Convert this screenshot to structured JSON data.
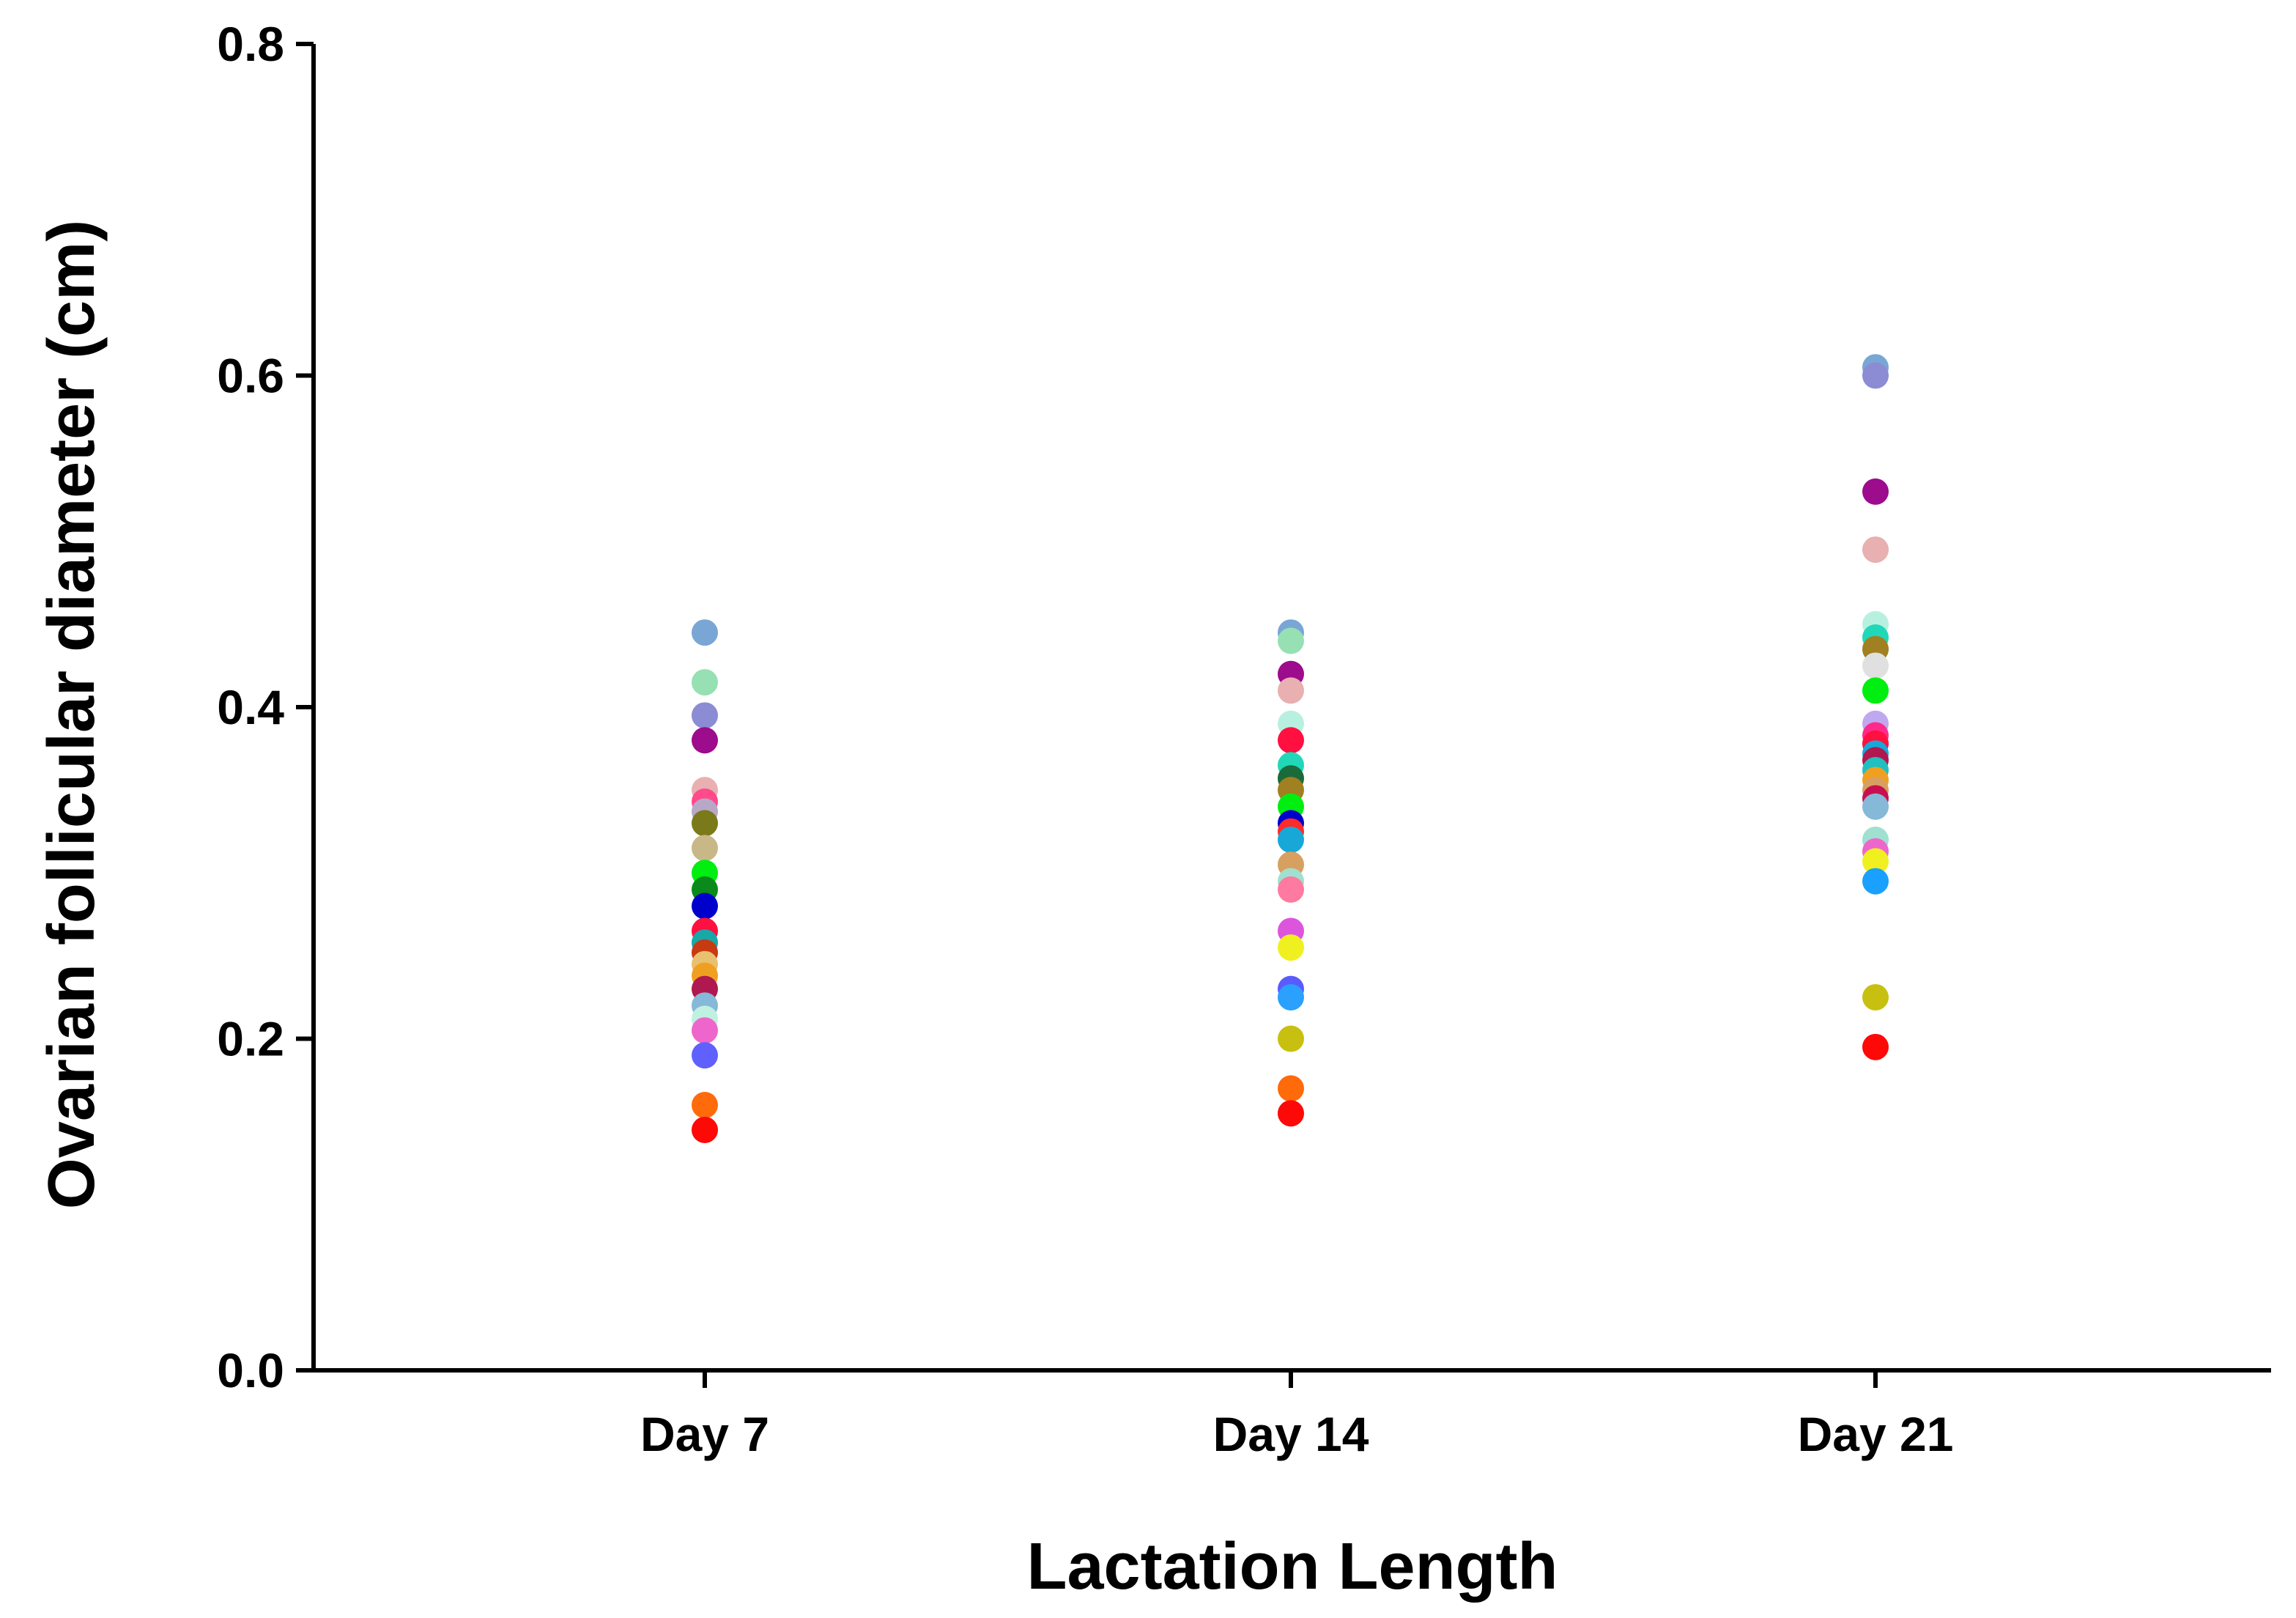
{
  "chart_data": {
    "type": "scatter",
    "title": "",
    "xlabel": "Lactation Length",
    "ylabel": "Ovarian follicular diameter (cm)",
    "categories": [
      "Day 7",
      "Day 14",
      "Day 21"
    ],
    "ylim": [
      0.0,
      0.8
    ],
    "yticks": [
      0.0,
      0.2,
      0.4,
      0.6,
      0.8
    ],
    "ytick_labels": [
      "0.0",
      "0.2",
      "0.4",
      "0.6",
      "0.8"
    ],
    "grid": false,
    "legend": "none",
    "groups": [
      {
        "category": "Day 7",
        "points": [
          {
            "y": 0.445,
            "color": "#7aa6d6"
          },
          {
            "y": 0.415,
            "color": "#96e0b4"
          },
          {
            "y": 0.395,
            "color": "#8c8cd4"
          },
          {
            "y": 0.38,
            "color": "#9c0c8c"
          },
          {
            "y": 0.35,
            "color": "#e8b0b0"
          },
          {
            "y": 0.343,
            "color": "#ff4a8c"
          },
          {
            "y": 0.337,
            "color": "#b8a8c8"
          },
          {
            "y": 0.33,
            "color": "#7a7a1a"
          },
          {
            "y": 0.315,
            "color": "#c8b888"
          },
          {
            "y": 0.3,
            "color": "#00ee10"
          },
          {
            "y": 0.29,
            "color": "#0a8a1a"
          },
          {
            "y": 0.28,
            "color": "#0000cc"
          },
          {
            "y": 0.265,
            "color": "#ff1040"
          },
          {
            "y": 0.258,
            "color": "#18a8a8"
          },
          {
            "y": 0.252,
            "color": "#c83a10"
          },
          {
            "y": 0.245,
            "color": "#e8c070"
          },
          {
            "y": 0.238,
            "color": "#f0a020"
          },
          {
            "y": 0.23,
            "color": "#b01850"
          },
          {
            "y": 0.22,
            "color": "#86b8d8"
          },
          {
            "y": 0.212,
            "color": "#c0f0e0"
          },
          {
            "y": 0.205,
            "color": "#ee66cc"
          },
          {
            "y": 0.19,
            "color": "#6060ff"
          },
          {
            "y": 0.16,
            "color": "#ff6a0a"
          },
          {
            "y": 0.145,
            "color": "#ff0808"
          }
        ]
      },
      {
        "category": "Day 14",
        "points": [
          {
            "y": 0.445,
            "color": "#7aa6d6"
          },
          {
            "y": 0.44,
            "color": "#96e0b4"
          },
          {
            "y": 0.42,
            "color": "#9c0c8c"
          },
          {
            "y": 0.41,
            "color": "#e8b0b0"
          },
          {
            "y": 0.39,
            "color": "#b8f0e0"
          },
          {
            "y": 0.38,
            "color": "#ff1040"
          },
          {
            "y": 0.365,
            "color": "#20d8b8"
          },
          {
            "y": 0.357,
            "color": "#1a6a3a"
          },
          {
            "y": 0.35,
            "color": "#a08020"
          },
          {
            "y": 0.34,
            "color": "#00ee10"
          },
          {
            "y": 0.33,
            "color": "#0000cc"
          },
          {
            "y": 0.325,
            "color": "#ff2a2a"
          },
          {
            "y": 0.32,
            "color": "#18a8d8"
          },
          {
            "y": 0.305,
            "color": "#d8a060"
          },
          {
            "y": 0.295,
            "color": "#a0e0d0"
          },
          {
            "y": 0.29,
            "color": "#ff7aa0"
          },
          {
            "y": 0.265,
            "color": "#dd55dd"
          },
          {
            "y": 0.255,
            "color": "#f0f020"
          },
          {
            "y": 0.23,
            "color": "#5a5aff"
          },
          {
            "y": 0.225,
            "color": "#2aa0ff"
          },
          {
            "y": 0.2,
            "color": "#c8c010"
          },
          {
            "y": 0.17,
            "color": "#ff6a0a"
          },
          {
            "y": 0.155,
            "color": "#ff0808"
          }
        ]
      },
      {
        "category": "Day 21",
        "points": [
          {
            "y": 0.605,
            "color": "#7aa6d6"
          },
          {
            "y": 0.6,
            "color": "#8c8cd4"
          },
          {
            "y": 0.53,
            "color": "#9c0c8c"
          },
          {
            "y": 0.495,
            "color": "#e8b0b0"
          },
          {
            "y": 0.45,
            "color": "#b8f0e0"
          },
          {
            "y": 0.442,
            "color": "#20d8b8"
          },
          {
            "y": 0.435,
            "color": "#a08020"
          },
          {
            "y": 0.425,
            "color": "#e0e0e0"
          },
          {
            "y": 0.41,
            "color": "#00ee10"
          },
          {
            "y": 0.39,
            "color": "#c0a8f0"
          },
          {
            "y": 0.383,
            "color": "#ff2a8a"
          },
          {
            "y": 0.378,
            "color": "#ff1040"
          },
          {
            "y": 0.372,
            "color": "#18a8d8"
          },
          {
            "y": 0.368,
            "color": "#b01850"
          },
          {
            "y": 0.362,
            "color": "#20c0c0"
          },
          {
            "y": 0.356,
            "color": "#f0a020"
          },
          {
            "y": 0.35,
            "color": "#d8a060"
          },
          {
            "y": 0.345,
            "color": "#c81050"
          },
          {
            "y": 0.34,
            "color": "#86b8d8"
          },
          {
            "y": 0.32,
            "color": "#a0e0d0"
          },
          {
            "y": 0.313,
            "color": "#ee66cc"
          },
          {
            "y": 0.307,
            "color": "#f0f020"
          },
          {
            "y": 0.295,
            "color": "#1aa0ff"
          },
          {
            "y": 0.225,
            "color": "#c8c010"
          },
          {
            "y": 0.195,
            "color": "#ff0808"
          }
        ]
      }
    ]
  }
}
